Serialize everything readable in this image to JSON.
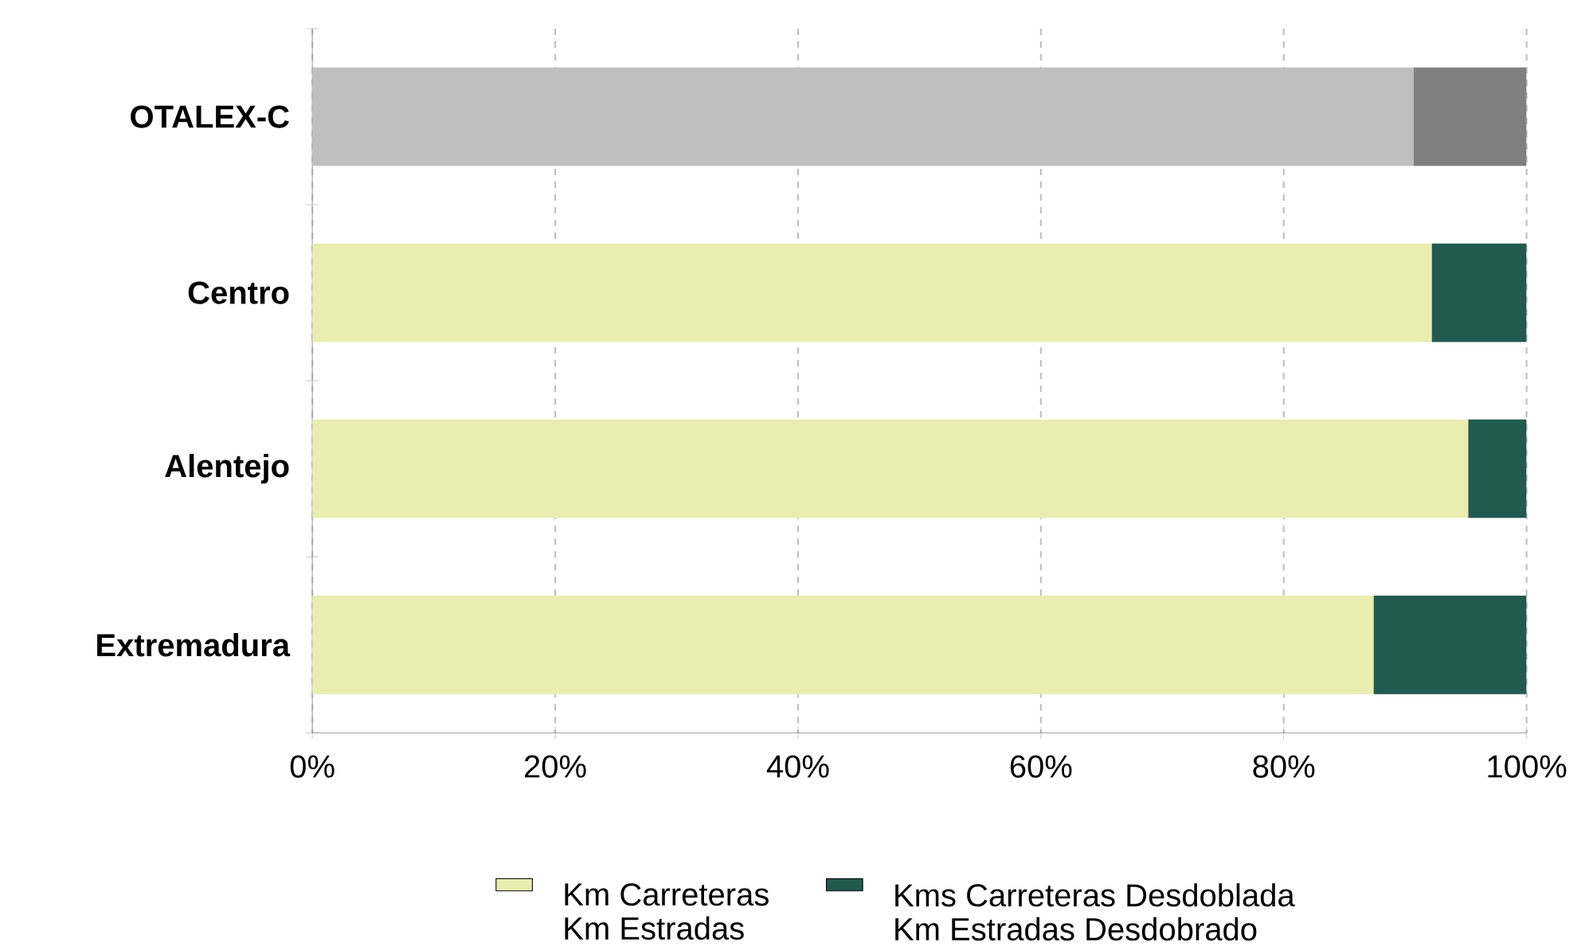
{
  "chart_data": {
    "type": "bar",
    "orientation": "horizontal",
    "stacked": true,
    "categories": [
      "OTALEX-C",
      "Centro",
      "Alentejo",
      "Extremadura"
    ],
    "series": [
      {
        "name": "Km Carreteras Km Estradas",
        "color": "#e9edb0",
        "colors": [
          "#bfbfbf",
          "#e9edb0",
          "#e9edb0",
          "#e9edb0"
        ],
        "values": [
          90.7,
          92.2,
          95.2,
          87.4
        ]
      },
      {
        "name": "Kms Carreteras Desdoblada Km Estradas Desdobrado",
        "color": "#225a50",
        "colors": [
          "#808080",
          "#225a50",
          "#225a50",
          "#225a50"
        ],
        "values": [
          9.3,
          7.8,
          4.8,
          12.6
        ]
      }
    ],
    "xlim": [
      0,
      100
    ],
    "xticks": [
      {
        "value": 0,
        "label": "0%"
      },
      {
        "value": 20,
        "label": "20%"
      },
      {
        "value": 40,
        "label": "40%"
      },
      {
        "value": 60,
        "label": "60%"
      },
      {
        "value": 80,
        "label": "80%"
      },
      {
        "value": 100,
        "label": "100%"
      }
    ],
    "grid": "x",
    "legend": "bottom"
  }
}
